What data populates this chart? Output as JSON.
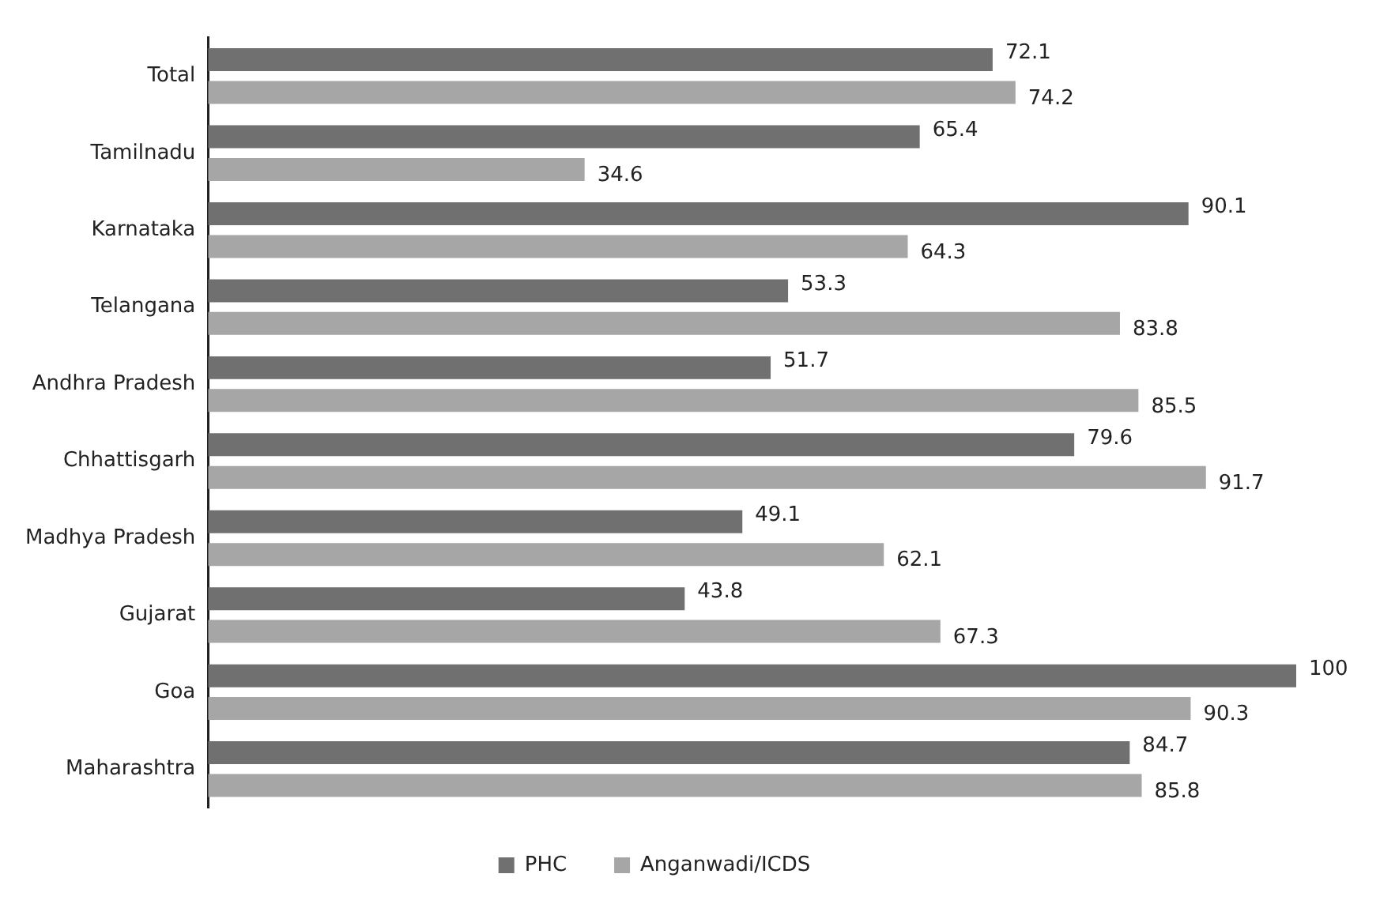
{
  "chart_data": {
    "type": "bar",
    "orientation": "horizontal",
    "categories": [
      "Total",
      "Tamilnadu",
      "Karnataka",
      "Telangana",
      "Andhra Pradesh",
      "Chhattisgarh",
      "Madhya Pradesh",
      "Gujarat",
      "Goa",
      "Maharashtra"
    ],
    "series": [
      {
        "name": "PHC",
        "color": "#707070",
        "values": [
          72.1,
          65.4,
          90.1,
          53.3,
          51.7,
          79.6,
          49.1,
          43.8,
          100,
          84.7
        ]
      },
      {
        "name": "Anganwadi/ICDS",
        "color": "#a6a6a6",
        "values": [
          74.2,
          34.6,
          64.3,
          83.8,
          85.5,
          91.7,
          62.1,
          67.3,
          90.3,
          85.8
        ]
      }
    ],
    "data_labels": true,
    "legend": "bottom",
    "tick_labels": "y"
  }
}
